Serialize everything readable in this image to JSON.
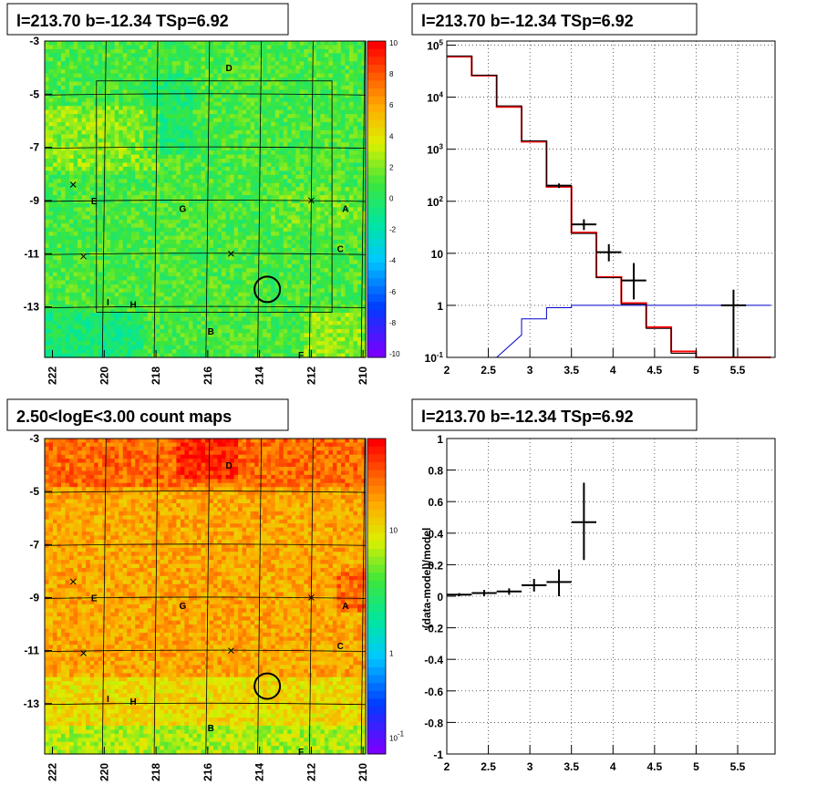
{
  "chart_data": [
    {
      "type": "heatmap",
      "title": "l=213.70 b=-12.34 TSp=6.92",
      "x_ticks": [
        "222",
        "220",
        "218",
        "216",
        "214",
        "212",
        "210"
      ],
      "y_ticks": [
        "-3",
        "-5",
        "-7",
        "-9",
        "-11",
        "-13"
      ],
      "xlim": [
        222.3,
        209.9
      ],
      "ylim": [
        -14.9,
        -3
      ],
      "colorbar_ticks": [
        "10",
        "8",
        "6",
        "4",
        "2",
        "0",
        "-2",
        "-4",
        "-6",
        "-8",
        "-10"
      ],
      "colorbar_range": [
        -10,
        10
      ],
      "grid": true,
      "target_circle": {
        "l": 213.7,
        "b": -12.34
      },
      "points": [
        {
          "label": "D",
          "l": 215.2,
          "b": -4.0
        },
        {
          "label": "E",
          "l": 220.4,
          "b": -9.0
        },
        {
          "label": "G",
          "l": 217.0,
          "b": -9.3
        },
        {
          "label": "A",
          "l": 210.7,
          "b": -9.3
        },
        {
          "label": "C",
          "l": 210.9,
          "b": -10.8
        },
        {
          "label": "I",
          "l": 219.8,
          "b": -12.8
        },
        {
          "label": "H",
          "l": 218.9,
          "b": -12.9
        },
        {
          "label": "B",
          "l": 215.9,
          "b": -13.9
        },
        {
          "label": "F",
          "l": 212.4,
          "b": -14.8
        }
      ],
      "crosses": [
        {
          "l": 221.2,
          "b": -8.4
        },
        {
          "l": 212.0,
          "b": -9.0
        },
        {
          "l": 215.1,
          "b": -11.0
        },
        {
          "l": 220.8,
          "b": -11.1
        }
      ]
    },
    {
      "type": "line",
      "title": "l=213.70 b=-12.34 TSp=6.92",
      "x_ticks": [
        "2",
        "2.5",
        "3",
        "3.5",
        "4",
        "4.5",
        "5",
        "5.5"
      ],
      "y_ticks": [
        "10^5",
        "10^4",
        "10^3",
        "10^2",
        "10",
        "1",
        "10^-1"
      ],
      "xlim": [
        2,
        5.95
      ],
      "ylim": [
        0.1,
        120000
      ],
      "yscale": "log",
      "grid": true,
      "series": [
        {
          "color": "#ff0000",
          "bin_edges": [
            2.0,
            2.3,
            2.6,
            2.9,
            3.2,
            3.5,
            3.8,
            4.1,
            4.4,
            4.7,
            5.0,
            5.3,
            5.6,
            5.9
          ],
          "values": [
            60000,
            26000,
            6500,
            1400,
            190,
            25,
            3.5,
            1.1,
            0.38,
            0.13,
            0.1,
            0.1,
            0.1
          ]
        },
        {
          "color": "#000000",
          "bin_edges": [
            2.0,
            2.3,
            2.6,
            2.9,
            3.2,
            3.5,
            3.8,
            4.1,
            4.4,
            4.7,
            5.0,
            5.3,
            5.6,
            5.9
          ],
          "values": [
            62000,
            26500,
            6800,
            1450,
            200,
            24,
            3.4,
            1.05,
            0.36,
            0.12,
            0.1,
            0.1,
            0.1
          ]
        },
        {
          "color": "#0000cc",
          "bin_edges": [
            2.6,
            2.9,
            3.2,
            3.5,
            3.8,
            4.1,
            4.4,
            4.7,
            5.0,
            5.3,
            5.6,
            5.9
          ],
          "values": [
            0.27,
            0.55,
            0.9,
            1.0,
            1.0,
            1.0,
            1.0,
            1.0,
            1.0,
            1.0,
            1.0
          ]
        }
      ],
      "data_points": [
        {
          "x": 3.35,
          "xerr": 0.15,
          "y": 200,
          "ylo": 180,
          "yhi": 220
        },
        {
          "x": 3.65,
          "xerr": 0.15,
          "y": 36,
          "ylo": 28,
          "yhi": 45
        },
        {
          "x": 3.95,
          "xerr": 0.15,
          "y": 10.5,
          "ylo": 7,
          "yhi": 15
        },
        {
          "x": 4.25,
          "xerr": 0.15,
          "y": 3.0,
          "ylo": 1.3,
          "yhi": 6.5
        },
        {
          "x": 5.45,
          "xerr": 0.15,
          "y": 1.0,
          "ylo": 0.1,
          "yhi": 2.0
        }
      ]
    },
    {
      "type": "heatmap",
      "title": "2.50<logE<3.00 count maps",
      "x_ticks": [
        "222",
        "220",
        "218",
        "216",
        "214",
        "212",
        "210"
      ],
      "y_ticks": [
        "-3",
        "-5",
        "-7",
        "-9",
        "-11",
        "-13"
      ],
      "xlim": [
        222.3,
        209.9
      ],
      "ylim": [
        -14.9,
        -3
      ],
      "colorbar_ticks": [
        "10",
        "1",
        "10^-1"
      ],
      "colorbar_scale": "log",
      "grid": true,
      "target_circle": {
        "l": 213.7,
        "b": -12.34
      },
      "points": [
        {
          "label": "D",
          "l": 215.2,
          "b": -4.0
        },
        {
          "label": "E",
          "l": 220.4,
          "b": -9.0
        },
        {
          "label": "G",
          "l": 217.0,
          "b": -9.3
        },
        {
          "label": "A",
          "l": 210.7,
          "b": -9.3
        },
        {
          "label": "C",
          "l": 210.9,
          "b": -10.8
        },
        {
          "label": "I",
          "l": 219.8,
          "b": -12.8
        },
        {
          "label": "H",
          "l": 218.9,
          "b": -12.9
        },
        {
          "label": "B",
          "l": 215.9,
          "b": -13.9
        },
        {
          "label": "F",
          "l": 212.4,
          "b": -14.8
        }
      ],
      "crosses": [
        {
          "l": 221.2,
          "b": -8.4
        },
        {
          "l": 212.0,
          "b": -9.0
        },
        {
          "l": 215.1,
          "b": -11.0
        },
        {
          "l": 220.8,
          "b": -11.1
        }
      ]
    },
    {
      "type": "scatter",
      "title": "l=213.70 b=-12.34 TSp=6.92",
      "ylabel": "(data-model)/model",
      "x_ticks": [
        "2",
        "2.5",
        "3",
        "3.5",
        "4",
        "4.5",
        "5",
        "5.5"
      ],
      "y_ticks": [
        "1",
        "0.8",
        "0.6",
        "0.4",
        "0.2",
        "0",
        "-0.2",
        "-0.4",
        "-0.6",
        "-0.8",
        "-1"
      ],
      "xlim": [
        2,
        5.95
      ],
      "ylim": [
        -1,
        1
      ],
      "grid": true,
      "data_points": [
        {
          "x": 2.15,
          "xerr": 0.15,
          "y": 0.01,
          "ylo": 0.0,
          "yhi": 0.02
        },
        {
          "x": 2.45,
          "xerr": 0.15,
          "y": 0.02,
          "ylo": 0.0,
          "yhi": 0.04
        },
        {
          "x": 2.75,
          "xerr": 0.15,
          "y": 0.03,
          "ylo": 0.01,
          "yhi": 0.05
        },
        {
          "x": 3.05,
          "xerr": 0.15,
          "y": 0.07,
          "ylo": 0.03,
          "yhi": 0.11
        },
        {
          "x": 3.35,
          "xerr": 0.15,
          "y": 0.09,
          "ylo": 0.0,
          "yhi": 0.17
        },
        {
          "x": 3.65,
          "xerr": 0.15,
          "y": 0.47,
          "ylo": 0.23,
          "yhi": 0.72
        }
      ]
    }
  ]
}
